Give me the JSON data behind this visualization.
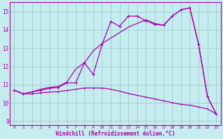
{
  "xlabel": "Windchill (Refroidissement éolien,°C)",
  "bg_color": "#c5ecee",
  "line_color": "#aa00aa",
  "grid_color": "#9ecece",
  "xlim": [
    -0.5,
    23.5
  ],
  "ylim": [
    8.8,
    15.5
  ],
  "xticks": [
    0,
    1,
    2,
    3,
    4,
    5,
    6,
    7,
    8,
    9,
    10,
    11,
    12,
    13,
    14,
    15,
    16,
    17,
    18,
    19,
    20,
    21,
    22,
    23
  ],
  "yticks": [
    9,
    10,
    11,
    12,
    13,
    14,
    15
  ],
  "line1_x": [
    0,
    1,
    2,
    3,
    4,
    5,
    6,
    7,
    8,
    9,
    10,
    11,
    12,
    13,
    14,
    15,
    16,
    17,
    18,
    19,
    20,
    21,
    22,
    23
  ],
  "line1_y": [
    10.7,
    10.5,
    10.6,
    10.7,
    10.8,
    10.85,
    11.1,
    11.1,
    12.2,
    11.55,
    13.2,
    14.45,
    14.2,
    14.75,
    14.75,
    14.5,
    14.3,
    14.25,
    14.75,
    15.1,
    15.2,
    13.2,
    10.35,
    9.4
  ],
  "line2_x": [
    0,
    1,
    2,
    3,
    4,
    5,
    6,
    7,
    8,
    9,
    10,
    11,
    12,
    13,
    14,
    15,
    16,
    17,
    18,
    19,
    20,
    21,
    22,
    23
  ],
  "line2_y": [
    10.7,
    10.5,
    10.6,
    10.75,
    10.85,
    10.9,
    11.15,
    11.85,
    12.2,
    12.85,
    13.25,
    13.55,
    13.85,
    14.15,
    14.35,
    14.55,
    14.35,
    14.25,
    14.75,
    15.1,
    15.2,
    13.2,
    10.35,
    9.4
  ],
  "line3_x": [
    0,
    1,
    2,
    3,
    4,
    5,
    6,
    7,
    8,
    9,
    10,
    11,
    12,
    13,
    14,
    15,
    16,
    17,
    18,
    19,
    20,
    21,
    22,
    23
  ],
  "line3_y": [
    10.7,
    10.5,
    10.5,
    10.55,
    10.6,
    10.62,
    10.68,
    10.75,
    10.82,
    10.82,
    10.82,
    10.75,
    10.65,
    10.52,
    10.42,
    10.32,
    10.22,
    10.12,
    10.02,
    9.92,
    9.88,
    9.78,
    9.68,
    9.4
  ]
}
